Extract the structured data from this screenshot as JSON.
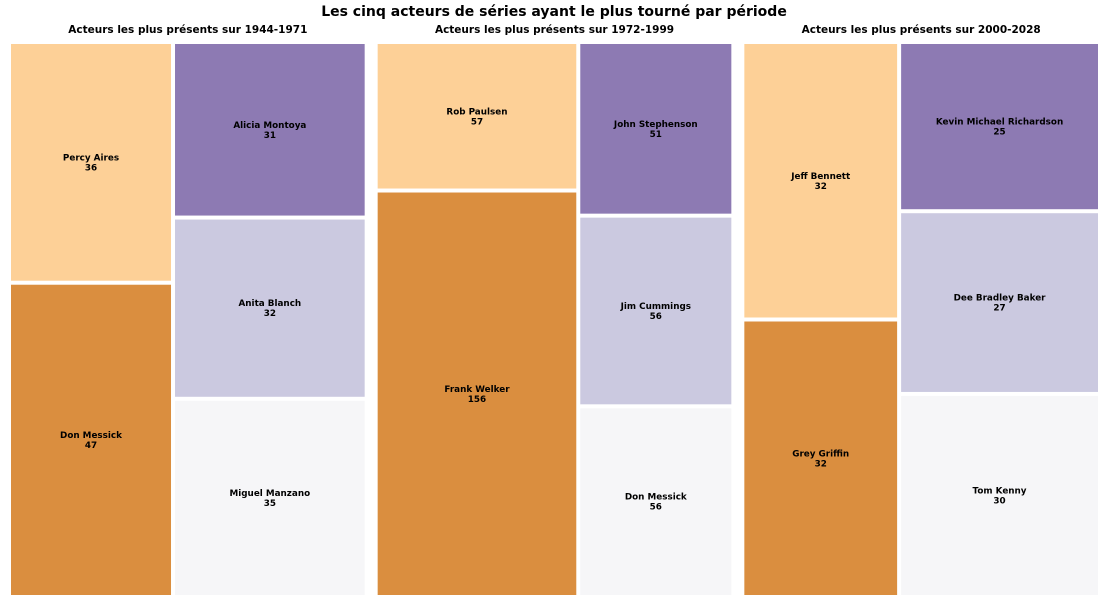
{
  "title": "Les cinq acteurs de séries ayant le plus tourné par période",
  "chart_data": {
    "type": "treemap",
    "title": "Les cinq acteurs de séries ayant le plus tourné par période",
    "panels": [
      {
        "title": "Acteurs les plus présents sur 1944-1971",
        "items": [
          {
            "name": "Percy Aires",
            "value": 36,
            "color": "#fdd097"
          },
          {
            "name": "Don Messick",
            "value": 47,
            "color": "#da8e3f"
          },
          {
            "name": "Alicia Montoya",
            "value": 31,
            "color": "#8d7ab3"
          },
          {
            "name": "Anita Blanch",
            "value": 32,
            "color": "#cbc9e0"
          },
          {
            "name": "Miguel Manzano",
            "value": 35,
            "color": "#f6f6f8"
          }
        ]
      },
      {
        "title": "Acteurs les plus présents sur 1972-1999",
        "items": [
          {
            "name": "Rob Paulsen",
            "value": 57,
            "color": "#fdd097"
          },
          {
            "name": "Frank Welker",
            "value": 156,
            "color": "#da8e3f"
          },
          {
            "name": "John Stephenson",
            "value": 51,
            "color": "#8d7ab3"
          },
          {
            "name": "Jim Cummings",
            "value": 56,
            "color": "#cbc9e0"
          },
          {
            "name": "Don Messick",
            "value": 56,
            "color": "#f6f6f8"
          }
        ]
      },
      {
        "title": "Acteurs les plus présents sur 2000-2028",
        "items": [
          {
            "name": "Jeff Bennett",
            "value": 32,
            "color": "#fdd097"
          },
          {
            "name": "Grey Griffin",
            "value": 32,
            "color": "#da8e3f"
          },
          {
            "name": "Kevin Michael Richardson",
            "value": 25,
            "color": "#8d7ab3"
          },
          {
            "name": "Dee Bradley Baker",
            "value": 27,
            "color": "#cbc9e0"
          },
          {
            "name": "Tom Kenny",
            "value": 30,
            "color": "#f6f6f8"
          }
        ]
      }
    ]
  }
}
